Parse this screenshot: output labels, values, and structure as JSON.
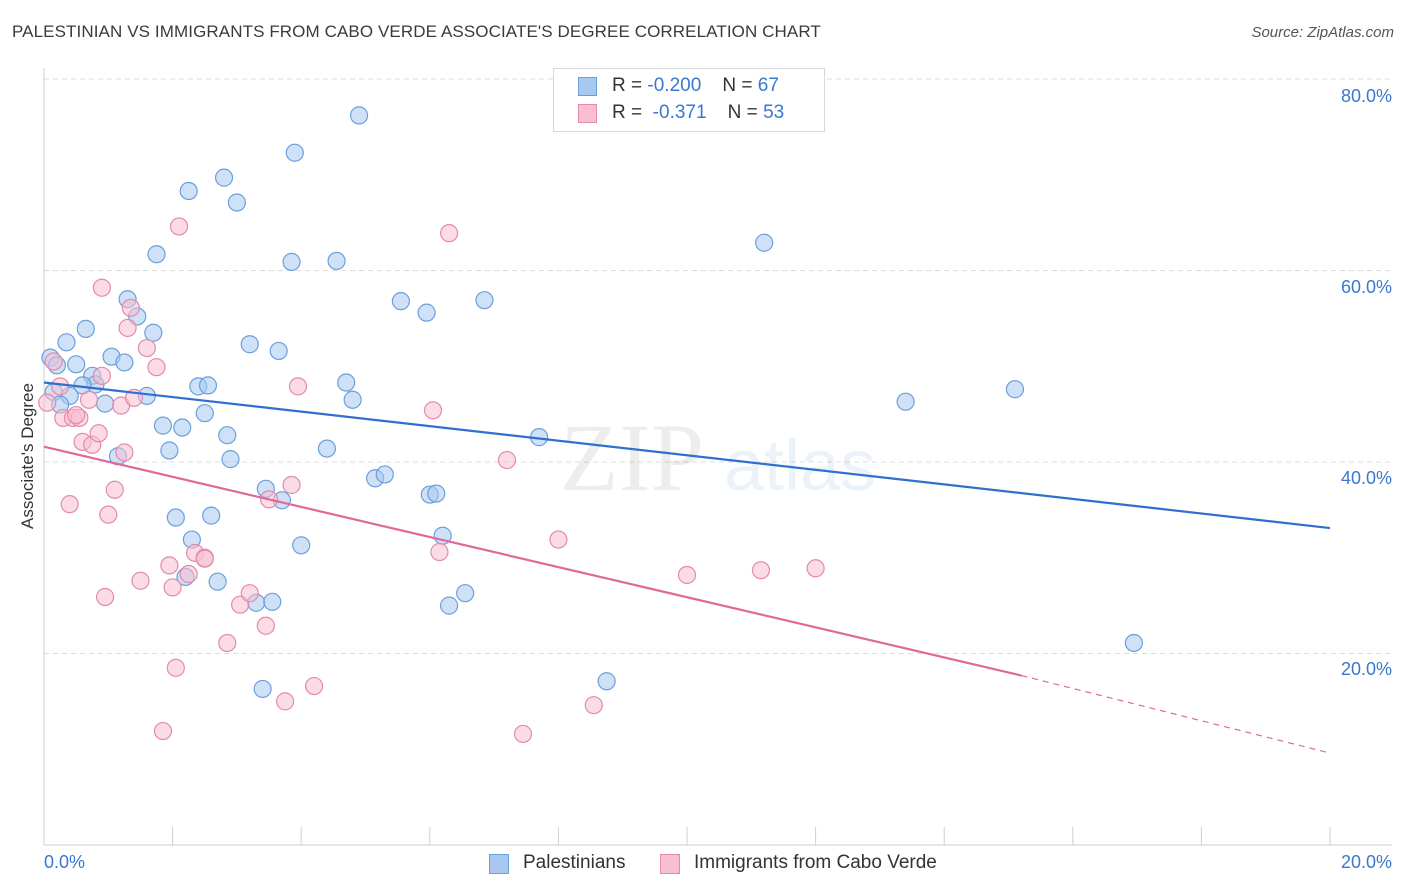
{
  "title": "PALESTINIAN VS IMMIGRANTS FROM CABO VERDE ASSOCIATE'S DEGREE CORRELATION CHART",
  "source": "Source: ZipAtlas.com",
  "watermark": {
    "zip": "ZIP",
    "atlas": "atlas"
  },
  "legend": {
    "rows": [
      {
        "r_label": "R =",
        "r_value": "-0.200",
        "n_label": "N =",
        "n_value": "67",
        "color": "#a8c8f0",
        "border": "#6b9fdc"
      },
      {
        "r_label": "R =",
        "r_value": "-0.371",
        "n_label": "N =",
        "n_value": "53",
        "color": "#f8bfd2",
        "border": "#e48aaa"
      }
    ]
  },
  "chart_data": {
    "type": "scatter",
    "title": "PALESTINIAN VS IMMIGRANTS FROM CABO VERDE ASSOCIATE'S DEGREE CORRELATION CHART",
    "xlabel": "",
    "ylabel": "Associate's Degree",
    "xlim": [
      0,
      20
    ],
    "ylim": [
      0,
      80
    ],
    "x_tick_labels": [
      "0.0%",
      "20.0%"
    ],
    "y_ticks": [
      20,
      40,
      60,
      80
    ],
    "y_tick_labels": [
      "20.0%",
      "40.0%",
      "60.0%",
      "80.0%"
    ],
    "grid": true,
    "legend_position": "top-center",
    "series": [
      {
        "name": "Palestinians",
        "color": "#6b9fdc",
        "fill": "#a8c8f0",
        "trend": {
          "x": [
            0,
            20
          ],
          "y": [
            48.3,
            33.1
          ]
        },
        "points": [
          [
            0.1,
            50.9
          ],
          [
            0.2,
            50.1
          ],
          [
            0.35,
            52.5
          ],
          [
            0.4,
            46.9
          ],
          [
            0.5,
            50.2
          ],
          [
            0.65,
            53.9
          ],
          [
            0.75,
            49.0
          ],
          [
            0.8,
            48.1
          ],
          [
            0.95,
            46.1
          ],
          [
            1.05,
            51.0
          ],
          [
            1.25,
            50.4
          ],
          [
            1.3,
            57.0
          ],
          [
            1.45,
            55.2
          ],
          [
            1.6,
            46.9
          ],
          [
            1.7,
            53.5
          ],
          [
            1.75,
            61.7
          ],
          [
            1.85,
            43.8
          ],
          [
            1.95,
            41.2
          ],
          [
            2.05,
            34.2
          ],
          [
            2.2,
            28.0
          ],
          [
            2.3,
            31.9
          ],
          [
            2.25,
            68.3
          ],
          [
            2.4,
            47.9
          ],
          [
            2.5,
            45.1
          ],
          [
            2.55,
            48.0
          ],
          [
            2.6,
            34.4
          ],
          [
            2.7,
            27.5
          ],
          [
            2.8,
            69.7
          ],
          [
            2.85,
            42.8
          ],
          [
            2.9,
            40.3
          ],
          [
            3.0,
            67.1
          ],
          [
            3.2,
            52.3
          ],
          [
            3.3,
            25.3
          ],
          [
            3.4,
            16.3
          ],
          [
            3.45,
            37.2
          ],
          [
            3.55,
            25.4
          ],
          [
            3.65,
            51.6
          ],
          [
            3.7,
            36.0
          ],
          [
            3.85,
            60.9
          ],
          [
            3.9,
            72.3
          ],
          [
            4.0,
            31.3
          ],
          [
            4.4,
            41.4
          ],
          [
            4.55,
            61.0
          ],
          [
            4.7,
            48.3
          ],
          [
            4.8,
            46.5
          ],
          [
            4.9,
            76.2
          ],
          [
            5.15,
            38.3
          ],
          [
            5.3,
            38.7
          ],
          [
            5.55,
            56.8
          ],
          [
            5.95,
            55.6
          ],
          [
            6.0,
            36.6
          ],
          [
            6.1,
            36.7
          ],
          [
            6.2,
            32.3
          ],
          [
            6.3,
            25.0
          ],
          [
            6.55,
            26.3
          ],
          [
            6.85,
            56.9
          ],
          [
            7.7,
            42.6
          ],
          [
            8.75,
            17.1
          ],
          [
            11.2,
            62.9
          ],
          [
            13.4,
            46.3
          ],
          [
            15.1,
            47.6
          ],
          [
            16.95,
            21.1
          ],
          [
            0.15,
            47.3
          ],
          [
            0.6,
            48.0
          ],
          [
            1.15,
            40.6
          ],
          [
            2.15,
            43.6
          ],
          [
            0.25,
            46.0
          ]
        ]
      },
      {
        "name": "Immigrants from Cabo Verde",
        "color": "#e48aaa",
        "fill": "#f8bfd2",
        "trend": {
          "x": [
            0,
            15.2
          ],
          "y": [
            41.6,
            17.7
          ]
        },
        "trend_dashed": {
          "x": [
            15.2,
            20
          ],
          "y": [
            17.7,
            9.6
          ]
        },
        "points": [
          [
            0.05,
            46.2
          ],
          [
            0.15,
            50.5
          ],
          [
            0.25,
            47.9
          ],
          [
            0.3,
            44.6
          ],
          [
            0.4,
            35.6
          ],
          [
            0.45,
            44.6
          ],
          [
            0.55,
            44.6
          ],
          [
            0.6,
            42.1
          ],
          [
            0.7,
            46.5
          ],
          [
            0.75,
            41.8
          ],
          [
            0.85,
            43.0
          ],
          [
            0.9,
            58.2
          ],
          [
            0.95,
            25.9
          ],
          [
            1.0,
            34.5
          ],
          [
            1.1,
            37.1
          ],
          [
            1.2,
            45.9
          ],
          [
            1.25,
            41.0
          ],
          [
            1.3,
            54.0
          ],
          [
            1.35,
            56.1
          ],
          [
            1.4,
            46.7
          ],
          [
            1.5,
            27.6
          ],
          [
            1.6,
            51.9
          ],
          [
            1.75,
            49.9
          ],
          [
            1.85,
            11.9
          ],
          [
            1.95,
            29.2
          ],
          [
            2.0,
            26.9
          ],
          [
            2.05,
            18.5
          ],
          [
            2.1,
            64.6
          ],
          [
            2.25,
            28.3
          ],
          [
            2.35,
            30.5
          ],
          [
            2.5,
            30.0
          ],
          [
            2.85,
            21.1
          ],
          [
            3.05,
            25.1
          ],
          [
            3.2,
            26.3
          ],
          [
            3.45,
            22.9
          ],
          [
            3.5,
            36.1
          ],
          [
            3.75,
            15.0
          ],
          [
            3.85,
            37.6
          ],
          [
            3.95,
            47.9
          ],
          [
            4.2,
            16.6
          ],
          [
            6.05,
            45.4
          ],
          [
            6.15,
            30.6
          ],
          [
            6.3,
            63.9
          ],
          [
            7.2,
            40.2
          ],
          [
            7.45,
            11.6
          ],
          [
            8.0,
            31.9
          ],
          [
            8.55,
            14.6
          ],
          [
            10.0,
            28.2
          ],
          [
            11.15,
            28.7
          ],
          [
            12.0,
            28.9
          ],
          [
            0.9,
            49.0
          ],
          [
            2.5,
            29.9
          ],
          [
            0.5,
            44.9
          ]
        ]
      }
    ]
  },
  "bottom_legend": [
    {
      "label": "Palestinians",
      "color": "#a8c8f0",
      "border": "#6b9fdc"
    },
    {
      "label": "Immigrants from Cabo Verde",
      "color": "#f8bfd2",
      "border": "#e48aaa"
    }
  ]
}
